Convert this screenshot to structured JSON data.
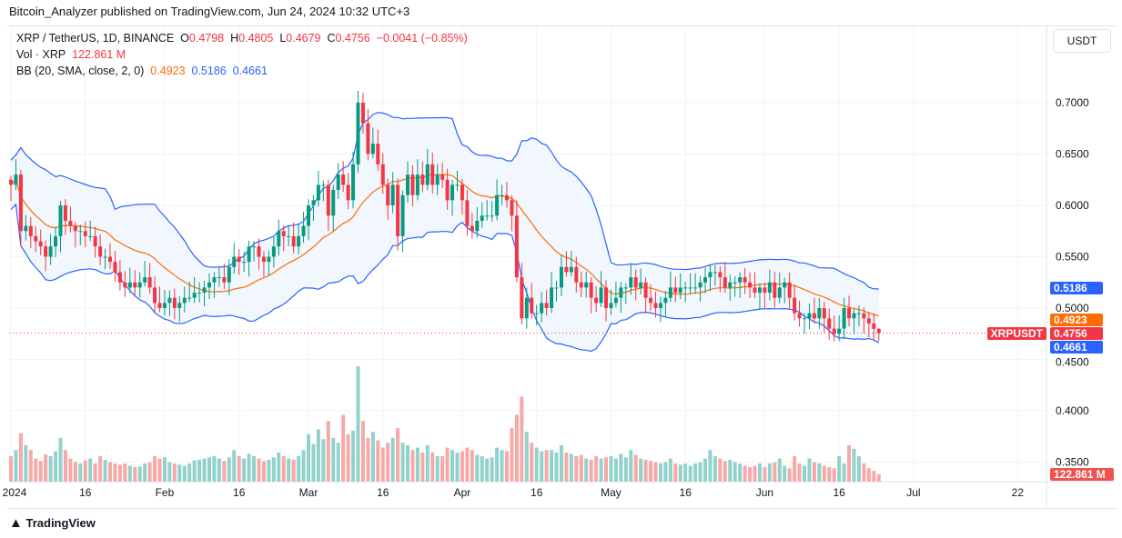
{
  "publish_line": "Bitcoin_Analyzer published on TradingView.com, Jun 24, 2024 10:32 UTC+3",
  "legend": {
    "symbol": "XRP / TetherUS, 1D, BINANCE",
    "o_label": "O",
    "o": "0.4798",
    "h_label": "H",
    "h": "0.4805",
    "l_label": "L",
    "l": "0.4679",
    "c_label": "C",
    "c": "0.4756",
    "change": "−0.0041 (−0.85%)",
    "vol_label": "Vol · XRP",
    "vol": "122.861 M",
    "bb_label": "BB (20, SMA, close, 2, 0)",
    "bb_basis": "0.4923",
    "bb_upper": "0.5186",
    "bb_lower": "0.4661"
  },
  "currency_button": "USDT",
  "price_tags": {
    "symbol": "XRPUSDT",
    "last": "0.4756",
    "upper": "0.5186",
    "basis": "0.4923",
    "lower": "0.4661",
    "volume": "122.861 M"
  },
  "footer_logo": "TradingView",
  "colors": {
    "up": "#089981",
    "down": "#f23645",
    "basis": "#ff6d00",
    "band": "#2962ff",
    "band_fill": "#f2f7fd",
    "vol_up": "#92d2cc",
    "vol_down": "#f7a9a7"
  },
  "chart_data": {
    "type": "candlestick",
    "start_date": "2024-01-01",
    "interval": "1D",
    "ylim": [
      0.33,
      0.745
    ],
    "y_ticks": [
      "0.7000",
      "0.6500",
      "0.6000",
      "0.5500",
      "0.5000",
      "0.4500",
      "0.4000",
      "0.3500"
    ],
    "y_tick_values": [
      0.7,
      0.65,
      0.6,
      0.55,
      0.5,
      0.45,
      0.4,
      0.35
    ],
    "x_ticks": [
      {
        "label": "2024",
        "date": "2024-01-01"
      },
      {
        "label": "16",
        "date": "2024-01-16"
      },
      {
        "label": "Feb",
        "date": "2024-02-01"
      },
      {
        "label": "16",
        "date": "2024-02-16"
      },
      {
        "label": "Mar",
        "date": "2024-03-01"
      },
      {
        "label": "16",
        "date": "2024-03-16"
      },
      {
        "label": "Apr",
        "date": "2024-04-01"
      },
      {
        "label": "16",
        "date": "2024-04-16"
      },
      {
        "label": "May",
        "date": "2024-05-01"
      },
      {
        "label": "16",
        "date": "2024-05-16"
      },
      {
        "label": "Jun",
        "date": "2024-06-01"
      },
      {
        "label": "16",
        "date": "2024-06-16"
      },
      {
        "label": "Jul",
        "date": "2024-07-01"
      },
      {
        "label": "22",
        "date": "2024-07-22"
      }
    ],
    "close": [
      0.62,
      0.63,
      0.575,
      0.58,
      0.57,
      0.565,
      0.56,
      0.55,
      0.56,
      0.57,
      0.6,
      0.585,
      0.58,
      0.575,
      0.575,
      0.57,
      0.57,
      0.56,
      0.55,
      0.55,
      0.545,
      0.535,
      0.525,
      0.52,
      0.525,
      0.52,
      0.525,
      0.53,
      0.52,
      0.505,
      0.5,
      0.505,
      0.51,
      0.5,
      0.505,
      0.51,
      0.51,
      0.515,
      0.515,
      0.52,
      0.525,
      0.53,
      0.53,
      0.525,
      0.54,
      0.55,
      0.545,
      0.545,
      0.56,
      0.56,
      0.55,
      0.545,
      0.55,
      0.56,
      0.575,
      0.57,
      0.57,
      0.56,
      0.57,
      0.58,
      0.6,
      0.605,
      0.62,
      0.62,
      0.59,
      0.615,
      0.63,
      0.62,
      0.605,
      0.64,
      0.7,
      0.68,
      0.65,
      0.66,
      0.64,
      0.62,
      0.6,
      0.62,
      0.57,
      0.61,
      0.63,
      0.61,
      0.63,
      0.62,
      0.64,
      0.62,
      0.63,
      0.625,
      0.605,
      0.62,
      0.62,
      0.605,
      0.58,
      0.575,
      0.585,
      0.59,
      0.59,
      0.59,
      0.61,
      0.61,
      0.605,
      0.59,
      0.53,
      0.49,
      0.51,
      0.495,
      0.495,
      0.505,
      0.5,
      0.52,
      0.52,
      0.54,
      0.535,
      0.54,
      0.525,
      0.52,
      0.525,
      0.51,
      0.505,
      0.52,
      0.5,
      0.505,
      0.51,
      0.52,
      0.52,
      0.53,
      0.52,
      0.525,
      0.51,
      0.505,
      0.5,
      0.505,
      0.51,
      0.52,
      0.515,
      0.52,
      0.52,
      0.52,
      0.52,
      0.525,
      0.53,
      0.535,
      0.535,
      0.53,
      0.52,
      0.525,
      0.525,
      0.53,
      0.525,
      0.52,
      0.515,
      0.52,
      0.515,
      0.525,
      0.51,
      0.52,
      0.525,
      0.51,
      0.495,
      0.49,
      0.49,
      0.495,
      0.49,
      0.5,
      0.49,
      0.48,
      0.475,
      0.48,
      0.5,
      0.49,
      0.495,
      0.495,
      0.49,
      0.485,
      0.4798,
      0.4756
    ],
    "last_candle": {
      "open": 0.4798,
      "high": 0.4805,
      "low": 0.4679,
      "close": 0.4756
    },
    "volume_millions": [
      420,
      520,
      800,
      600,
      520,
      380,
      340,
      450,
      420,
      500,
      720,
      520,
      380,
      330,
      300,
      350,
      380,
      300,
      420,
      360,
      320,
      300,
      280,
      300,
      260,
      240,
      250,
      300,
      320,
      420,
      380,
      400,
      320,
      300,
      280,
      260,
      300,
      350,
      360,
      380,
      400,
      420,
      380,
      340,
      400,
      520,
      420,
      380,
      460,
      420,
      380,
      340,
      360,
      400,
      480,
      420,
      380,
      360,
      420,
      520,
      780,
      620,
      860,
      700,
      1000,
      720,
      640,
      1100,
      780,
      840,
      1900,
      1000,
      720,
      820,
      680,
      560,
      640,
      720,
      880,
      640,
      600,
      520,
      560,
      480,
      600,
      480,
      420,
      420,
      560,
      520,
      480,
      500,
      560,
      520,
      440,
      420,
      380,
      400,
      560,
      520,
      500,
      880,
      1100,
      1400,
      820,
      640,
      560,
      500,
      520,
      520,
      480,
      600,
      480,
      460,
      420,
      440,
      380,
      360,
      420,
      380,
      400,
      420,
      380,
      460,
      400,
      520,
      440,
      380,
      360,
      340,
      320,
      300,
      320,
      380,
      300,
      280,
      300,
      260,
      300,
      320,
      380,
      520,
      420,
      380,
      340,
      360,
      320,
      300,
      260,
      240,
      260,
      300,
      240,
      300,
      320,
      380,
      260,
      220,
      420,
      300,
      260,
      380,
      320,
      300,
      260,
      240,
      220,
      420,
      300,
      600,
      540,
      420,
      300,
      220,
      180,
      122.861
    ],
    "bollinger": {
      "period": 20,
      "stddev": 2,
      "basis_last": 0.4923,
      "upper_last": 0.5186,
      "lower_last": 0.4661
    }
  }
}
